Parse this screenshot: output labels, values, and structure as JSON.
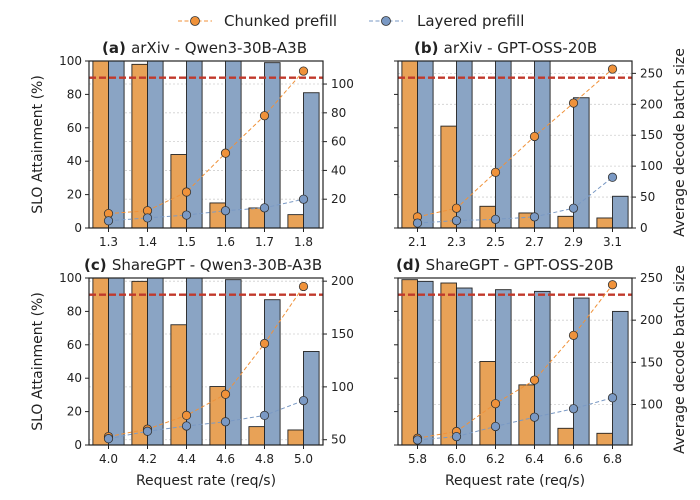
{
  "legend": {
    "items": [
      {
        "label": "Chunked prefill",
        "color": "#f0923a"
      },
      {
        "label": "Layered prefill",
        "color": "#7a99c4"
      }
    ],
    "placement": "top-center"
  },
  "colors": {
    "chunked_bar": "#e8a257",
    "layered_bar": "#8aa4c4",
    "chunked_line": "#f0923a",
    "layered_line": "#7a99c4",
    "slo_line": "#c0392b"
  },
  "chart_data": [
    {
      "type": "bar",
      "panel_tag": "(a)",
      "title": "arXiv - Qwen3-30B-A3B",
      "categories": [
        "1.3",
        "1.4",
        "1.5",
        "1.6",
        "1.7",
        "1.8"
      ],
      "xlabel": "",
      "ylabel": "SLO Attainment (%)",
      "y2label": "",
      "ylim": [
        0,
        100
      ],
      "yticks": [
        0,
        20,
        40,
        60,
        80,
        100
      ],
      "y2lim": [
        0,
        116
      ],
      "y2ticks": [
        20,
        40,
        60,
        80,
        100
      ],
      "slo_line": 90,
      "series": [
        {
          "name": "Chunked prefill",
          "kind": "bar",
          "axis": "left",
          "values": [
            100,
            98,
            44,
            15,
            12,
            8
          ]
        },
        {
          "name": "Layered prefill",
          "kind": "bar",
          "axis": "left",
          "values": [
            100,
            100,
            100,
            100,
            99,
            81
          ]
        },
        {
          "name": "Chunked prefill",
          "kind": "line",
          "axis": "right",
          "values": [
            10,
            12,
            25,
            52,
            78,
            109
          ]
        },
        {
          "name": "Layered prefill",
          "kind": "line",
          "axis": "right",
          "values": [
            5,
            7,
            9,
            12,
            14,
            20
          ]
        }
      ],
      "grid": true
    },
    {
      "type": "bar",
      "panel_tag": "(b)",
      "title": "arXiv - GPT-OSS-20B",
      "categories": [
        "2.1",
        "2.3",
        "2.5",
        "2.7",
        "2.9",
        "3.1"
      ],
      "xlabel": "",
      "ylabel": "",
      "y2label": "Average decode batch size",
      "ylim": [
        0,
        100
      ],
      "yticks": [
        0,
        20,
        40,
        60,
        80,
        100
      ],
      "y2lim": [
        0,
        270
      ],
      "y2ticks": [
        0,
        50,
        100,
        150,
        200,
        250
      ],
      "slo_line": 90,
      "series": [
        {
          "name": "Chunked prefill",
          "kind": "bar",
          "axis": "left",
          "values": [
            100,
            61,
            13,
            9,
            7,
            6
          ]
        },
        {
          "name": "Layered prefill",
          "kind": "bar",
          "axis": "left",
          "values": [
            100,
            100,
            100,
            100,
            78,
            19
          ]
        },
        {
          "name": "Chunked prefill",
          "kind": "line",
          "axis": "right",
          "values": [
            18,
            32,
            90,
            148,
            202,
            257
          ]
        },
        {
          "name": "Layered prefill",
          "kind": "line",
          "axis": "right",
          "values": [
            8,
            12,
            14,
            18,
            32,
            82
          ]
        }
      ],
      "grid": true
    },
    {
      "type": "bar",
      "panel_tag": "(c)",
      "title": "ShareGPT - Qwen3-30B-A3B",
      "categories": [
        "4.0",
        "4.2",
        "4.4",
        "4.6",
        "4.8",
        "5.0"
      ],
      "xlabel": "Request rate (req/s)",
      "ylabel": "SLO Attainment (%)",
      "y2label": "",
      "ylim": [
        0,
        100
      ],
      "yticks": [
        0,
        20,
        40,
        60,
        80,
        100
      ],
      "y2lim": [
        45,
        203
      ],
      "y2ticks": [
        50,
        100,
        150,
        200
      ],
      "slo_line": 90,
      "series": [
        {
          "name": "Chunked prefill",
          "kind": "bar",
          "axis": "left",
          "values": [
            100,
            98,
            72,
            35,
            11,
            9
          ]
        },
        {
          "name": "Layered prefill",
          "kind": "bar",
          "axis": "left",
          "values": [
            100,
            100,
            100,
            99,
            87,
            56
          ]
        },
        {
          "name": "Chunked prefill",
          "kind": "line",
          "axis": "right",
          "values": [
            53,
            60,
            73,
            93,
            141,
            195
          ]
        },
        {
          "name": "Layered prefill",
          "kind": "line",
          "axis": "right",
          "values": [
            51,
            58,
            63,
            67,
            73,
            87
          ]
        }
      ],
      "grid": true
    },
    {
      "type": "bar",
      "panel_tag": "(d)",
      "title": "ShareGPT - GPT-OSS-20B",
      "categories": [
        "5.8",
        "6.0",
        "6.2",
        "6.4",
        "6.6",
        "6.8"
      ],
      "xlabel": "Request rate (req/s)",
      "ylabel": "",
      "y2label": "Average decode batch size",
      "ylim": [
        0,
        100
      ],
      "yticks": [
        0,
        20,
        40,
        60,
        80,
        100
      ],
      "y2lim": [
        52,
        250
      ],
      "y2ticks": [
        100,
        150,
        200,
        250
      ],
      "slo_line": 90,
      "series": [
        {
          "name": "Chunked prefill",
          "kind": "bar",
          "axis": "left",
          "values": [
            99,
            97,
            50,
            36,
            10,
            7
          ]
        },
        {
          "name": "Layered prefill",
          "kind": "bar",
          "axis": "left",
          "values": [
            98,
            94,
            93,
            92,
            88,
            80
          ]
        },
        {
          "name": "Chunked prefill",
          "kind": "line",
          "axis": "right",
          "values": [
            60,
            68,
            101,
            129,
            182,
            242
          ]
        },
        {
          "name": "Layered prefill",
          "kind": "line",
          "axis": "right",
          "values": [
            58,
            62,
            74,
            85,
            95,
            108
          ]
        }
      ],
      "grid": true
    }
  ]
}
